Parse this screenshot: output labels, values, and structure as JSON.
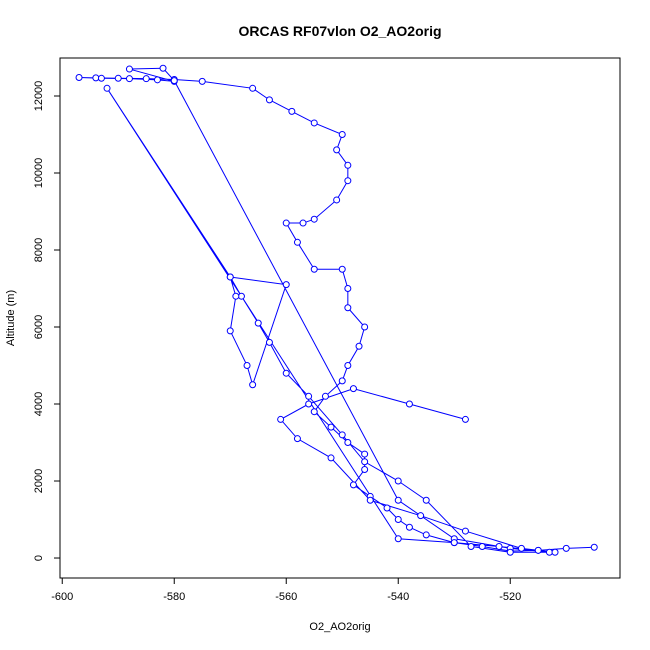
{
  "chart_data": {
    "type": "line",
    "title": "ORCAS RF07vlon O2_AO2orig",
    "x_label": "O2_AO2orig",
    "y_label": "Altitude (m)",
    "color": "#0000ff",
    "x": [
      -505,
      -510,
      -515,
      -520,
      -525,
      -530,
      -535,
      -538,
      -540,
      -542,
      -545,
      -548,
      -546,
      -546,
      -549,
      -552,
      -555,
      -553,
      -550,
      -549,
      -547,
      -546,
      -549,
      -549,
      -550,
      -555,
      -558,
      -560,
      -557,
      -555,
      -551,
      -549,
      -549,
      -551,
      -550,
      -555,
      -559,
      -563,
      -566,
      -575,
      -580,
      -585,
      -590,
      -594,
      -597,
      -593,
      -588,
      -583,
      -580,
      -588,
      -582,
      -580,
      -540,
      -530,
      -520,
      -513,
      -520,
      -527,
      -535,
      -540,
      -546,
      -550,
      -556,
      -560,
      -563,
      -565,
      -568,
      -570,
      -560,
      -566,
      -567,
      -570,
      -569,
      -570,
      -592,
      -540,
      -530,
      -522,
      -515,
      -512,
      -518,
      -528,
      -536,
      -545,
      -552,
      -558,
      -561,
      -556,
      -548,
      -538,
      -528
    ],
    "values": [
      280,
      250,
      200,
      180,
      300,
      400,
      600,
      800,
      1000,
      1300,
      1600,
      1900,
      2300,
      2700,
      3000,
      3400,
      3800,
      4200,
      4600,
      5000,
      5500,
      6000,
      6500,
      7000,
      7500,
      7500,
      8200,
      8700,
      8700,
      8800,
      9300,
      9800,
      10200,
      10600,
      11000,
      11300,
      11600,
      11900,
      12200,
      12380,
      12430,
      12450,
      12460,
      12470,
      12480,
      12460,
      12450,
      12420,
      12380,
      12700,
      12720,
      12400,
      1500,
      500,
      250,
      150,
      150,
      300,
      1500,
      2000,
      2500,
      3200,
      4200,
      4800,
      5600,
      6100,
      6800,
      7300,
      7100,
      4500,
      5000,
      5900,
      6800,
      7300,
      12200,
      500,
      400,
      300,
      200,
      150,
      250,
      700,
      1100,
      1500,
      2600,
      3100,
      3600,
      4000,
      4400,
      4000,
      3600
    ],
    "xlim": [
      -600.4,
      -500.4
    ],
    "ylim": [
      -519,
      12987
    ],
    "xticks": [
      -600,
      -580,
      -560,
      -540,
      -520
    ],
    "yticks": [
      0,
      2000,
      4000,
      6000,
      8000,
      10000,
      12000
    ]
  }
}
